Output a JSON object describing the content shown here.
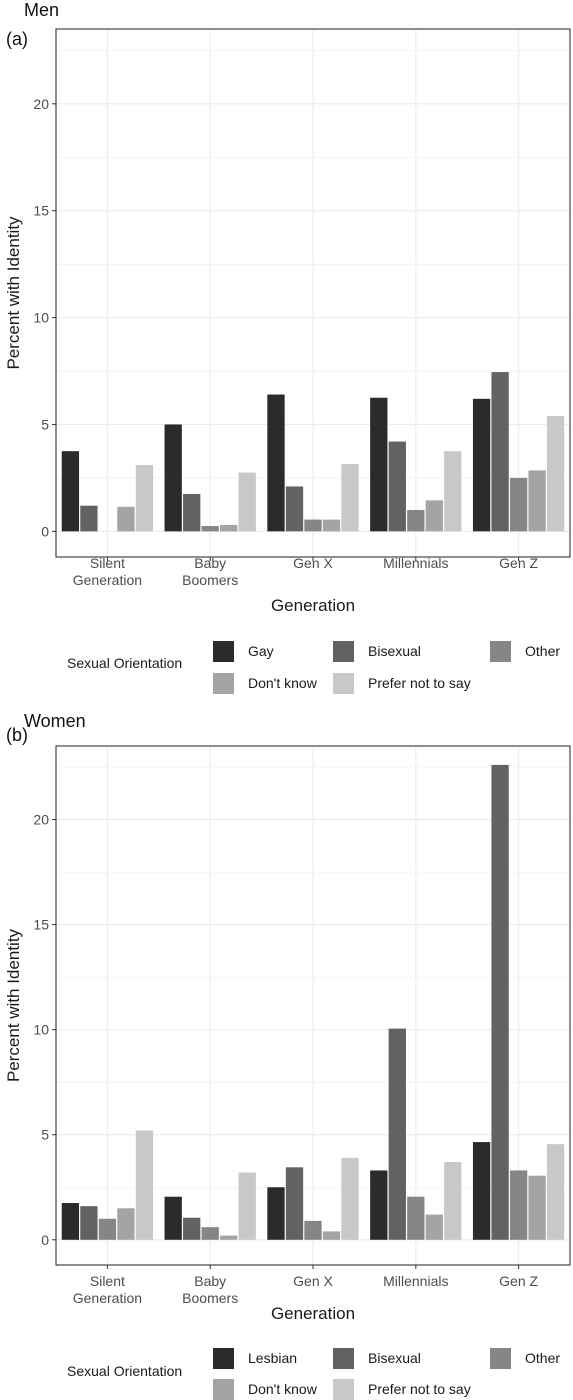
{
  "chart_data": [
    {
      "type": "bar",
      "panel_label": "(a)",
      "title": "Men",
      "xlabel": "Generation",
      "ylabel": "Percent with Identity",
      "ylim": [
        -1.2,
        23.5
      ],
      "yticks": [
        0,
        5,
        10,
        15,
        20
      ],
      "grid": true,
      "legend_position": "bottom",
      "categories": [
        "Silent\nGeneration",
        "Baby\nBoomers",
        "Gen X",
        "Millennials",
        "Gen Z"
      ],
      "legend_title": "Sexual Orientation",
      "series": [
        {
          "name": "Gay",
          "color": "#2b2b2b",
          "values": [
            3.75,
            5.0,
            6.4,
            6.25,
            6.2
          ]
        },
        {
          "name": "Bisexual",
          "color": "#626262",
          "values": [
            1.2,
            1.75,
            2.1,
            4.2,
            7.45
          ]
        },
        {
          "name": "Other",
          "color": "#868686",
          "values": [
            0.0,
            0.25,
            0.55,
            1.0,
            2.5
          ]
        },
        {
          "name": "Don't know",
          "color": "#a4a4a4",
          "values": [
            1.15,
            0.3,
            0.55,
            1.45,
            2.85
          ]
        },
        {
          "name": "Prefer not to say",
          "color": "#c8c8c8",
          "values": [
            3.1,
            2.75,
            3.15,
            3.75,
            5.4
          ]
        }
      ]
    },
    {
      "type": "bar",
      "panel_label": "(b)",
      "title": "Women",
      "xlabel": "Generation",
      "ylabel": "Percent with Identity",
      "ylim": [
        -1.2,
        23.5
      ],
      "yticks": [
        0,
        5,
        10,
        15,
        20
      ],
      "grid": true,
      "legend_position": "bottom",
      "categories": [
        "Silent\nGeneration",
        "Baby\nBoomers",
        "Gen X",
        "Millennials",
        "Gen Z"
      ],
      "legend_title": "Sexual Orientation",
      "series": [
        {
          "name": "Lesbian",
          "color": "#2b2b2b",
          "values": [
            1.75,
            2.05,
            2.5,
            3.3,
            4.65
          ]
        },
        {
          "name": "Bisexual",
          "color": "#626262",
          "values": [
            1.6,
            1.05,
            3.45,
            10.05,
            22.6
          ]
        },
        {
          "name": "Other",
          "color": "#868686",
          "values": [
            1.0,
            0.6,
            0.9,
            2.05,
            3.3
          ]
        },
        {
          "name": "Don't know",
          "color": "#a4a4a4",
          "values": [
            1.5,
            0.2,
            0.4,
            1.2,
            3.05
          ]
        },
        {
          "name": "Prefer not to say",
          "color": "#c8c8c8",
          "values": [
            5.2,
            3.2,
            3.9,
            3.7,
            4.55
          ]
        }
      ]
    }
  ]
}
